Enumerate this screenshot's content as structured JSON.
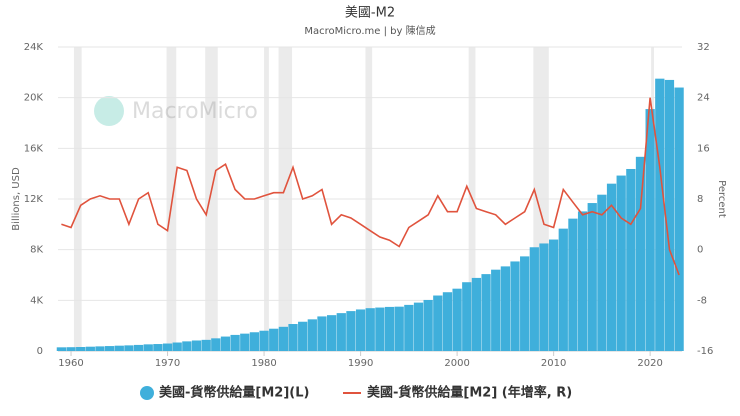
{
  "chart_data": {
    "type": "bar-line",
    "title": "美國-M2",
    "subtitle": "MacroMicro.me | by 陳信成",
    "watermark": "MacroMicro",
    "y_label": "Billions, USD",
    "y2_label": "Percent",
    "x": [
      1959,
      1960,
      1961,
      1962,
      1963,
      1964,
      1965,
      1966,
      1967,
      1968,
      1969,
      1970,
      1971,
      1972,
      1973,
      1974,
      1975,
      1976,
      1977,
      1978,
      1979,
      1980,
      1981,
      1982,
      1983,
      1984,
      1985,
      1986,
      1987,
      1988,
      1989,
      1990,
      1991,
      1992,
      1993,
      1994,
      1995,
      1996,
      1997,
      1998,
      1999,
      2000,
      2001,
      2002,
      2003,
      2004,
      2005,
      2006,
      2007,
      2008,
      2009,
      2010,
      2011,
      2012,
      2013,
      2014,
      2015,
      2016,
      2017,
      2018,
      2019,
      2020,
      2021,
      2022,
      2023
    ],
    "series": [
      {
        "name": "美國-貨幣供給量[M2](L)",
        "color": "#3fafdb",
        "axis": "y",
        "values": [
          290,
          300,
          315,
          340,
          365,
          390,
          420,
          445,
          480,
          525,
          550,
          590,
          670,
          760,
          830,
          880,
          1000,
          1140,
          1270,
          1370,
          1480,
          1600,
          1760,
          1910,
          2130,
          2310,
          2500,
          2730,
          2830,
          2990,
          3150,
          3280,
          3380,
          3430,
          3480,
          3500,
          3640,
          3820,
          4030,
          4380,
          4640,
          4920,
          5430,
          5770,
          6070,
          6420,
          6680,
          7070,
          7470,
          8190,
          8490,
          8800,
          9660,
          10450,
          11020,
          11680,
          12340,
          13210,
          13850,
          14370,
          15330,
          19100,
          21500,
          21400,
          20800
        ]
      },
      {
        "name": "美國-貨幣供給量[M2] (年增率, R)",
        "color": "#e0533d",
        "axis": "y2",
        "values": [
          4,
          3.5,
          7,
          8,
          8.5,
          8,
          8,
          4,
          8,
          9,
          4,
          3,
          13,
          12.5,
          8,
          5.5,
          12.5,
          13.5,
          9.5,
          8,
          8,
          8.5,
          9,
          9,
          13,
          8,
          8.5,
          9.5,
          4,
          5.5,
          5,
          4,
          3,
          2,
          1.5,
          0.5,
          3.5,
          4.5,
          5.5,
          8.5,
          6,
          6,
          10,
          6.5,
          6,
          5.5,
          4,
          5,
          6,
          9.5,
          4,
          3.5,
          9.5,
          7.5,
          5.5,
          6,
          5.5,
          7,
          5,
          4,
          6.5,
          24,
          13,
          0,
          -4
        ]
      }
    ],
    "recessions": [
      [
        1960.3,
        1961.1
      ],
      [
        1969.9,
        1970.9
      ],
      [
        1973.9,
        1975.2
      ],
      [
        1980.0,
        1980.5
      ],
      [
        1981.5,
        1982.9
      ],
      [
        1990.5,
        1991.2
      ],
      [
        2001.2,
        2001.9
      ],
      [
        2007.9,
        2009.5
      ],
      [
        2020.1,
        2020.4
      ]
    ],
    "xlim": [
      1958.65,
      2023.3
    ],
    "xticks": [
      1960,
      1970,
      1980,
      1990,
      2000,
      2010,
      2020
    ],
    "ylim": [
      0,
      24000
    ],
    "yticks": [
      0,
      {
        "value": 4000,
        "label": "4K"
      },
      {
        "value": 8000,
        "label": "8K"
      },
      {
        "value": 12000,
        "label": "12K"
      },
      {
        "value": 16000,
        "label": "16K"
      },
      {
        "value": 20000,
        "label": "20K"
      },
      {
        "value": 24000,
        "label": "24K"
      }
    ],
    "y2lim": [
      -16,
      32
    ],
    "y2ticks": [
      -16,
      -8,
      0,
      8,
      16,
      24,
      32
    ],
    "grid": true
  }
}
